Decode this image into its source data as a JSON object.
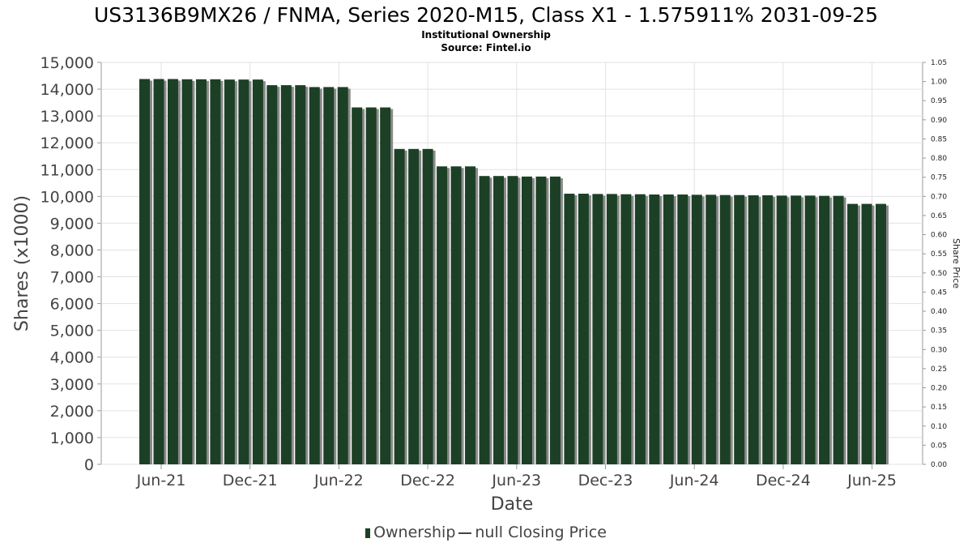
{
  "chart_data": {
    "type": "bar",
    "title": "US3136B9MX26 / FNMA, Series 2020-M15, Class X1 - 1.575911% 2031-09-25",
    "subtitle_lines": [
      "Institutional Ownership",
      "Source: Fintel.io"
    ],
    "xlabel": "Date",
    "ylabel": "Shares (x1000)",
    "y2label": "Share Price",
    "ylim": [
      0,
      15000
    ],
    "y2lim": [
      0,
      1.05
    ],
    "yticks": [
      "0",
      "1,000",
      "2,000",
      "3,000",
      "4,000",
      "5,000",
      "6,000",
      "7,000",
      "8,000",
      "9,000",
      "10,000",
      "11,000",
      "12,000",
      "13,000",
      "14,000",
      "15,000"
    ],
    "y2ticks": [
      "0.00",
      "0.05",
      "0.10",
      "0.15",
      "0.20",
      "0.25",
      "0.30",
      "0.35",
      "0.40",
      "0.45",
      "0.50",
      "0.55",
      "0.60",
      "0.65",
      "0.70",
      "0.75",
      "0.80",
      "0.85",
      "0.90",
      "0.95",
      "1.00",
      "1.05"
    ],
    "xticks": [
      "Jun-21",
      "Dec-21",
      "Jun-22",
      "Dec-22",
      "Jun-23",
      "Dec-23",
      "Jun-24",
      "Dec-24",
      "Jun-25"
    ],
    "grid": true,
    "legend_position": "bottom",
    "series": [
      {
        "name": "Ownership",
        "color": "#1c4025",
        "values": [
          14380,
          14380,
          14380,
          14370,
          14370,
          14370,
          14360,
          14360,
          14360,
          14150,
          14150,
          14150,
          14080,
          14080,
          14080,
          13320,
          13320,
          13320,
          11770,
          11770,
          11770,
          11120,
          11120,
          11120,
          10760,
          10760,
          10760,
          10740,
          10740,
          10740,
          10100,
          10100,
          10090,
          10090,
          10080,
          10080,
          10070,
          10070,
          10070,
          10060,
          10060,
          10050,
          10050,
          10040,
          10040,
          10030,
          10030,
          10030,
          10020,
          10020,
          9720,
          9720,
          9720
        ]
      }
    ],
    "legend": [
      "Ownership",
      "null Closing Price"
    ]
  }
}
